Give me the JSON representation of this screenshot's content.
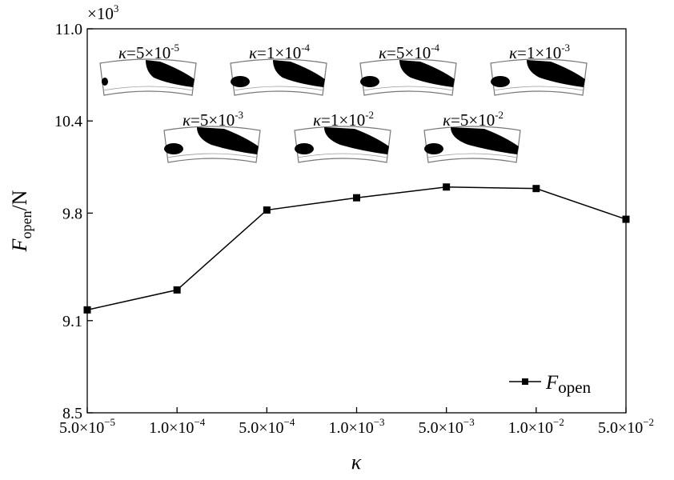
{
  "chart_data": {
    "type": "line",
    "title": "",
    "xlabel": "κ",
    "ylabel_main": "F",
    "ylabel_sub": "open",
    "ylabel_unit": "/N",
    "y_multiplier_label": "×10",
    "y_multiplier_exp": "3",
    "categories": [
      "5.0×10⁻⁵",
      "1.0×10⁻⁴",
      "5.0×10⁻⁴",
      "1.0×10⁻³",
      "5.0×10⁻³",
      "1.0×10⁻²",
      "5.0×10⁻²"
    ],
    "x_tick_labels": [
      {
        "mant": "5.0×10",
        "exp": "−5"
      },
      {
        "mant": "1.0×10",
        "exp": "−4"
      },
      {
        "mant": "5.0×10",
        "exp": "−4"
      },
      {
        "mant": "1.0×10",
        "exp": "−3"
      },
      {
        "mant": "5.0×10",
        "exp": "−3"
      },
      {
        "mant": "1.0×10",
        "exp": "−2"
      },
      {
        "mant": "5.0×10",
        "exp": "−2"
      }
    ],
    "y_ticks": [
      8.5,
      9.1,
      9.8,
      10.4,
      11.0
    ],
    "y_tick_labels": [
      "8.5",
      "9.1",
      "9.8",
      "10.4",
      "11.0"
    ],
    "ylim": [
      8.5,
      11.0
    ],
    "series": [
      {
        "name_main": "F",
        "name_sub": "open",
        "values": [
          9.17,
          9.3,
          9.82,
          9.9,
          9.97,
          9.96,
          9.76
        ]
      }
    ],
    "legend_position": "bottom-right",
    "grid": false,
    "insets": [
      {
        "label_mant": "κ=5×10",
        "label_exp": "-5"
      },
      {
        "label_mant": "κ=1×10",
        "label_exp": "-4"
      },
      {
        "label_mant": "κ=5×10",
        "label_exp": "-4"
      },
      {
        "label_mant": "κ=1×10",
        "label_exp": "-3"
      },
      {
        "label_mant": "κ=5×10",
        "label_exp": "-3"
      },
      {
        "label_mant": "κ=1×10",
        "label_exp": "-2"
      },
      {
        "label_mant": "κ=5×10",
        "label_exp": "-2"
      }
    ],
    "colors": {
      "line": "#000000",
      "marker": "#000000",
      "axis": "#000000"
    }
  }
}
